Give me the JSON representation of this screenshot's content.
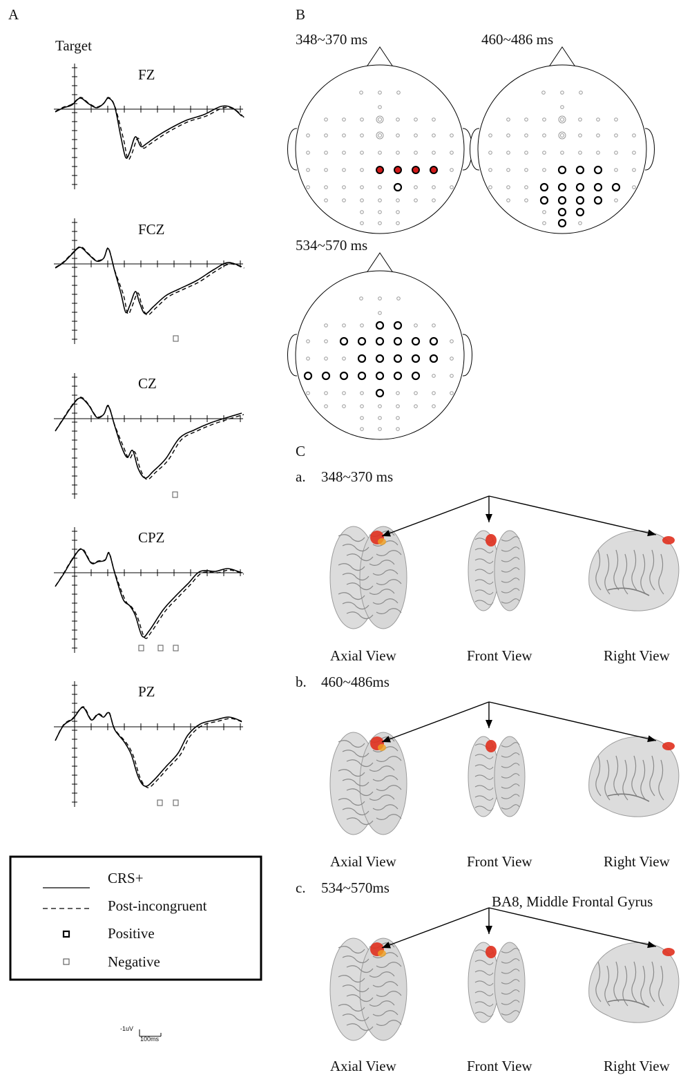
{
  "panel_a": {
    "label": "A",
    "condition": "Target",
    "channels": [
      "FZ",
      "FCZ",
      "CZ",
      "CPZ",
      "PZ"
    ],
    "legend": {
      "items": [
        {
          "label": "CRS+",
          "style": "solid"
        },
        {
          "label": "Post-incongruent",
          "style": "dashed"
        },
        {
          "label": "Positive",
          "style": "bold-square"
        },
        {
          "label": "Negative",
          "style": "thin-square"
        }
      ]
    },
    "scale": {
      "amplitude": "-1uV",
      "time": "100ms"
    }
  },
  "panel_b": {
    "label": "B",
    "maps": [
      {
        "window": "348~370 ms"
      },
      {
        "window": "460~486 ms"
      },
      {
        "window": "534~570 ms"
      }
    ]
  },
  "panel_c": {
    "label": "C",
    "rows": [
      {
        "tag": "a.",
        "window": "348~370 ms"
      },
      {
        "tag": "b.",
        "window": "460~486ms"
      },
      {
        "tag": "c.",
        "window": "534~570ms",
        "annotation": "BA8, Middle Frontal Gyrus"
      }
    ],
    "views": [
      "Axial View",
      "Front View",
      "Right View"
    ]
  },
  "colors": {
    "sig_red": "#d11a1a",
    "brain": "#d9d9d9",
    "activation": "#e0301e"
  }
}
